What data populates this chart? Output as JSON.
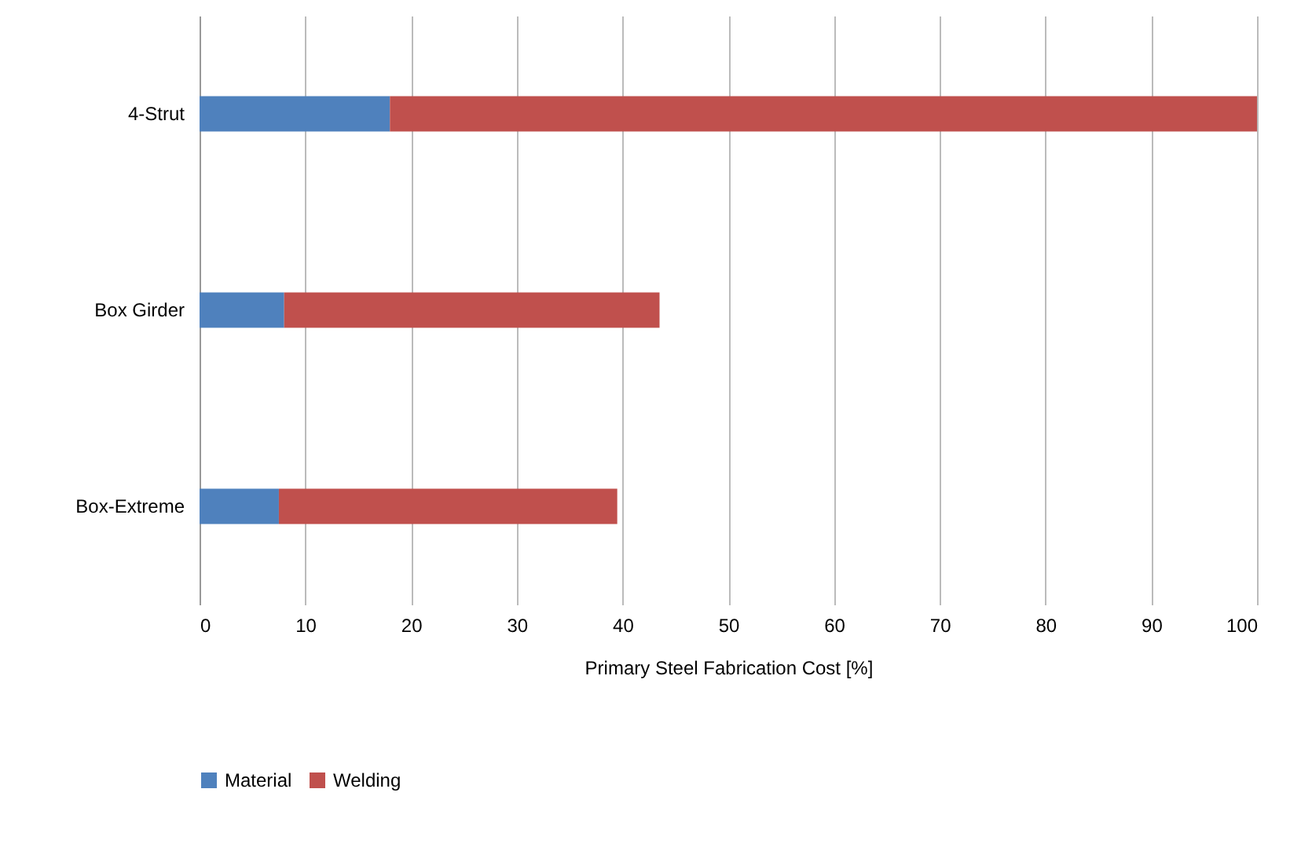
{
  "chart_data": {
    "type": "bar",
    "orientation": "horizontal",
    "stacked": true,
    "xlabel": "Primary Steel Fabrication Cost [%]",
    "categories": [
      "4-Strut",
      "Box Girder",
      "Box-Extreme"
    ],
    "series": [
      {
        "name": "Material",
        "color": "#4f81bd",
        "values": [
          18,
          8,
          7.5
        ]
      },
      {
        "name": "Welding",
        "color": "#c0504d",
        "values": [
          82,
          35.5,
          32
        ]
      }
    ],
    "xlim": [
      0,
      100
    ],
    "xticks": [
      0,
      10,
      20,
      30,
      40,
      50,
      60,
      70,
      80,
      90,
      100
    ],
    "grid": "x",
    "legend": "bottom"
  }
}
